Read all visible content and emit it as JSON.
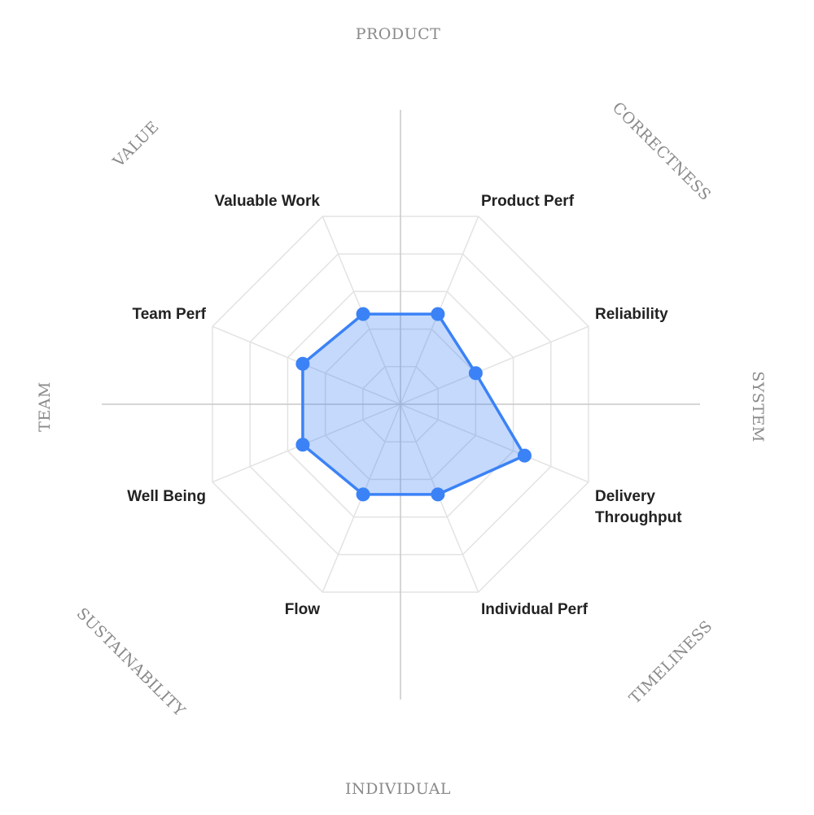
{
  "chart_data": {
    "type": "radar",
    "title": "",
    "grid_levels": 5,
    "value_max": 5,
    "grid": true,
    "legend": "none",
    "axes": [
      {
        "label": "Product Perf",
        "value": 2.4
      },
      {
        "label": "Reliability",
        "value": 2.0
      },
      {
        "label": "Delivery Throughput",
        "value": 3.3
      },
      {
        "label": "Individual Perf",
        "value": 2.4
      },
      {
        "label": "Flow",
        "value": 2.4
      },
      {
        "label": "Well Being",
        "value": 2.6
      },
      {
        "label": "Team Perf",
        "value": 2.6
      },
      {
        "label": "Valuable Work",
        "value": 2.4
      }
    ],
    "categories": [
      {
        "label": "PRODUCT"
      },
      {
        "label": "CORRECTNESS"
      },
      {
        "label": "SYSTEM"
      },
      {
        "label": "TIMELINESS"
      },
      {
        "label": "INDIVIDUAL"
      },
      {
        "label": "SUSTAINABILITY"
      },
      {
        "label": "TEAM"
      },
      {
        "label": "VALUE"
      }
    ],
    "colors": {
      "series": "#3b82f6",
      "fill": "rgba(59,130,246,0.30)",
      "grid": "#e3e3e3",
      "axis": "#c9c9c9"
    }
  }
}
